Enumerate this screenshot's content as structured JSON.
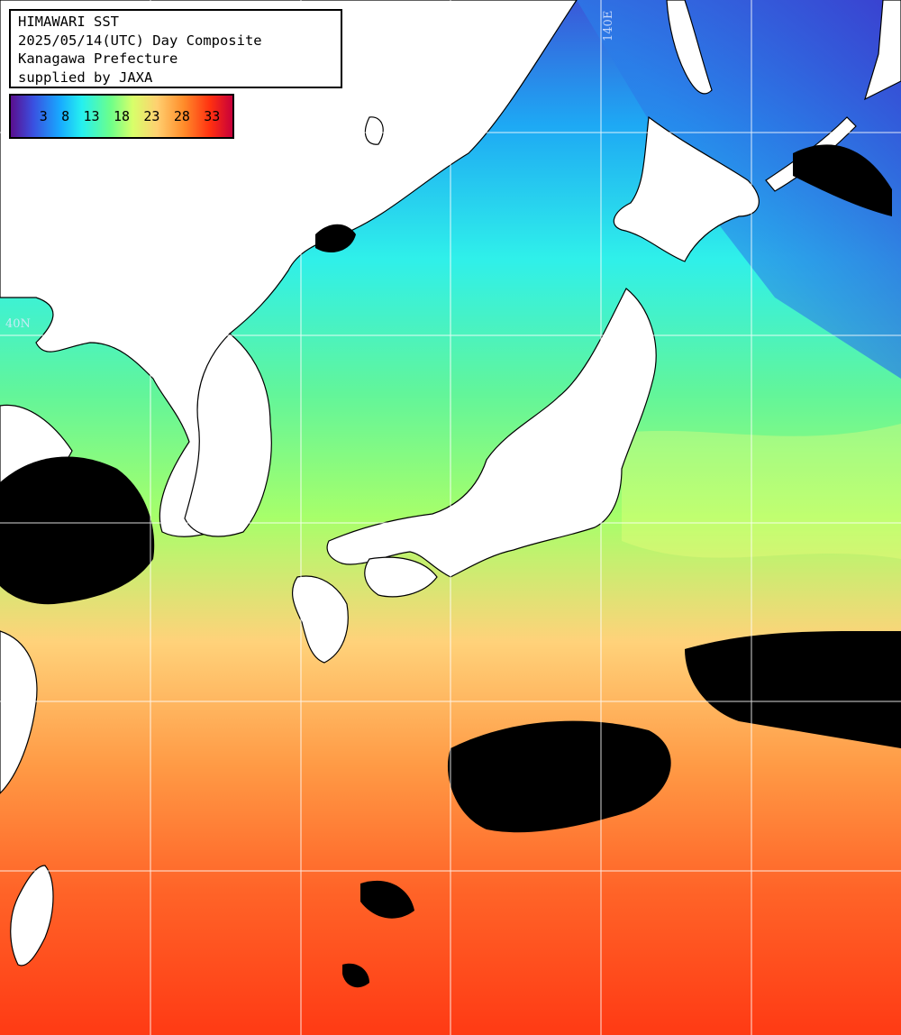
{
  "header": {
    "line1": "HIMAWARI SST",
    "line2": "2025/05/14(UTC) Day Composite",
    "line3": "Kanagawa Prefecture",
    "line4": "supplied by JAXA"
  },
  "legend": {
    "ticks": [
      "3",
      "8",
      "13",
      "18",
      "23",
      "28",
      "33"
    ]
  },
  "graticule": {
    "lat_label": "40N",
    "lon_label": "140E"
  },
  "colors": {
    "land": "#ffffff",
    "cloud": "#000000",
    "grid": "#ffffff",
    "cold": "#3a50d8",
    "cool": "#2fe6f0",
    "mild": "#8cff7a",
    "warm": "#ffcc70",
    "hot": "#ff4a18"
  }
}
